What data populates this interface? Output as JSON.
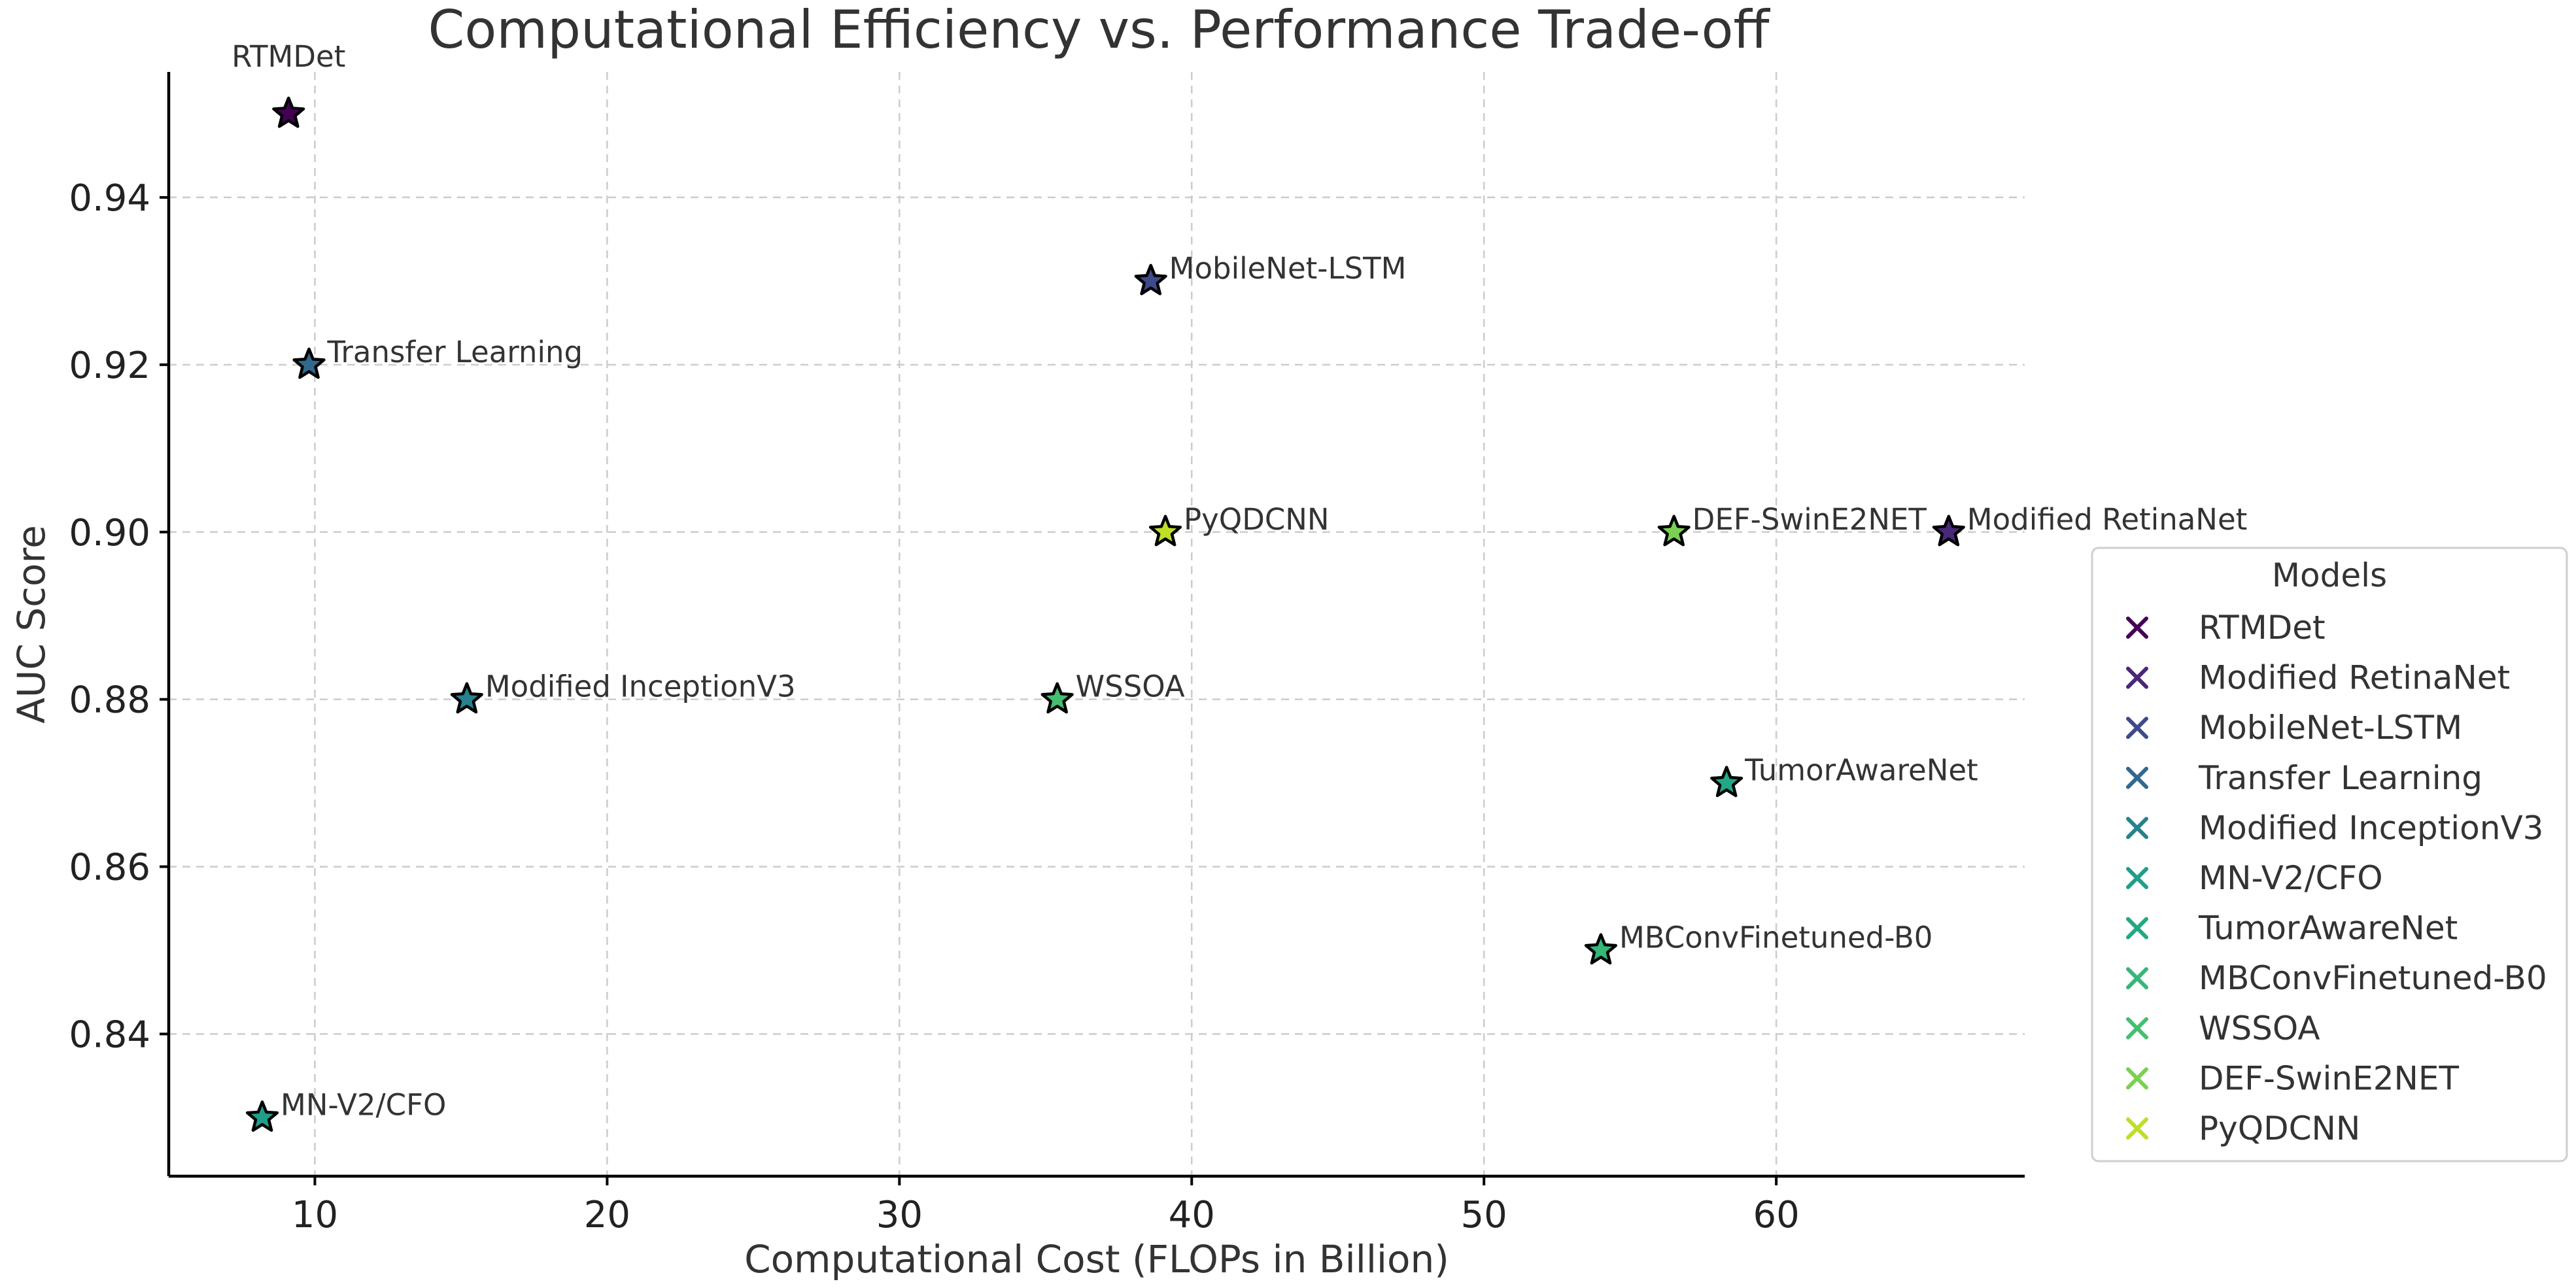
{
  "chart_data": {
    "type": "scatter",
    "title": "Computational Efficiency vs. Performance Trade-off",
    "xlabel": "Computational Cost (FLOPs in Billion)",
    "ylabel": "AUC Score",
    "xlim": [
      5,
      68.5
    ],
    "ylim": [
      0.823,
      0.955
    ],
    "xticks": [
      10,
      20,
      30,
      40,
      50,
      60
    ],
    "yticks": [
      0.84,
      0.86,
      0.88,
      0.9,
      0.92,
      0.94
    ],
    "ytick_labels": [
      "0.84",
      "0.86",
      "0.88",
      "0.90",
      "0.92",
      "0.94"
    ],
    "grid": true,
    "marker": "star",
    "legend": {
      "title": "Models",
      "placement": "right",
      "marker": "x"
    },
    "series": [
      {
        "name": "RTMDet",
        "x": 9.1,
        "y": 0.95,
        "color": "#440154",
        "label_position": "above"
      },
      {
        "name": "Modified RetinaNet",
        "x": 65.9,
        "y": 0.9,
        "color": "#482878",
        "label_position": "right"
      },
      {
        "name": "MobileNet-LSTM",
        "x": 38.6,
        "y": 0.93,
        "color": "#3e4a89",
        "label_position": "right"
      },
      {
        "name": "Transfer Learning",
        "x": 9.8,
        "y": 0.92,
        "color": "#31688e",
        "label_position": "right"
      },
      {
        "name": "Modified InceptionV3",
        "x": 15.2,
        "y": 0.88,
        "color": "#26828e",
        "label_position": "right"
      },
      {
        "name": "MN-V2/CFO",
        "x": 8.2,
        "y": 0.83,
        "color": "#1f9e89",
        "label_position": "right"
      },
      {
        "name": "TumorAwareNet",
        "x": 58.3,
        "y": 0.87,
        "color": "#22a884",
        "label_position": "right"
      },
      {
        "name": "MBConvFinetuned-B0",
        "x": 54.0,
        "y": 0.85,
        "color": "#35b779",
        "label_position": "right"
      },
      {
        "name": "WSSOA",
        "x": 35.4,
        "y": 0.88,
        "color": "#44bf70",
        "label_position": "right"
      },
      {
        "name": "DEF-SwinE2NET",
        "x": 56.5,
        "y": 0.9,
        "color": "#7ad151",
        "label_position": "right"
      },
      {
        "name": "PyQDCNN",
        "x": 39.1,
        "y": 0.9,
        "color": "#bddf26",
        "label_position": "right"
      }
    ]
  }
}
